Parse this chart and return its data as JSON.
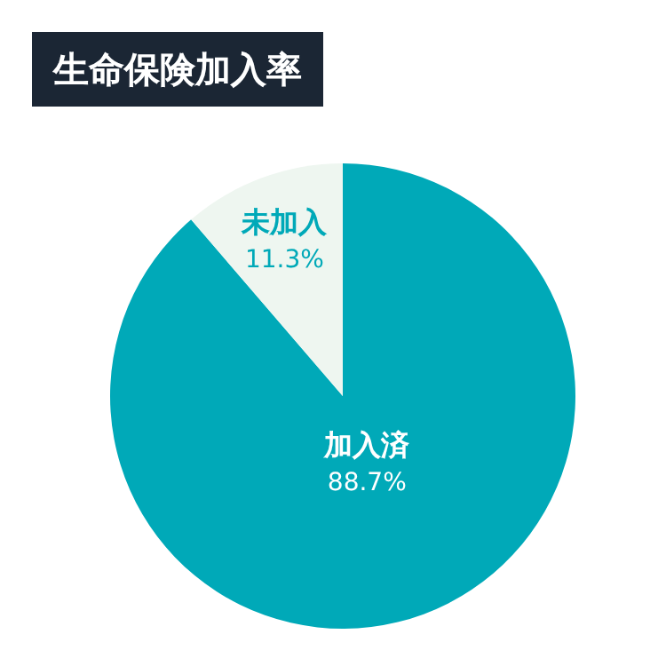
{
  "chart_data": {
    "type": "pie",
    "title": "生命保険加入率",
    "categories": [
      "加入済",
      "未加入"
    ],
    "values": [
      88.7,
      11.3
    ],
    "colors": [
      "#00a9b8",
      "#eef6f0"
    ],
    "value_labels": [
      "88.7%",
      "11.3%"
    ],
    "legend": false
  }
}
